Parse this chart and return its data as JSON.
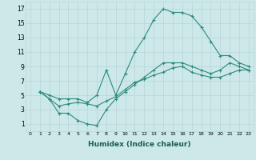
{
  "xlabel": "Humidex (Indice chaleur)",
  "line_color": "#2e8b7a",
  "bg_color": "#cce8e8",
  "grid_color": "#b8d4d4",
  "xlim": [
    -0.5,
    23.5
  ],
  "ylim": [
    0,
    18
  ],
  "xticks": [
    0,
    1,
    2,
    3,
    4,
    5,
    6,
    7,
    8,
    9,
    10,
    11,
    12,
    13,
    14,
    15,
    16,
    17,
    18,
    19,
    20,
    21,
    22,
    23
  ],
  "yticks": [
    1,
    3,
    5,
    7,
    9,
    11,
    13,
    15,
    17
  ],
  "line1_x": [
    1,
    2,
    3,
    4,
    5,
    6,
    7,
    8,
    9,
    10,
    11,
    12,
    13,
    14,
    15,
    16,
    17,
    18,
    19,
    20,
    21,
    22,
    23
  ],
  "line1_y": [
    5.5,
    5.0,
    4.5,
    4.5,
    4.5,
    4.0,
    5.0,
    8.5,
    5.0,
    8.0,
    11.0,
    13.0,
    15.5,
    17.0,
    16.5,
    16.5,
    16.0,
    14.5,
    12.5,
    10.5,
    10.5,
    9.5,
    9.0
  ],
  "line2_x": [
    1,
    2,
    3,
    4,
    5,
    6,
    7,
    8,
    9,
    10,
    11,
    12,
    13,
    14,
    15,
    16,
    17,
    18,
    19,
    20,
    21,
    22,
    23
  ],
  "line2_y": [
    5.5,
    4.5,
    2.5,
    2.5,
    1.5,
    1.0,
    0.8,
    3.0,
    4.5,
    5.5,
    6.5,
    7.5,
    8.5,
    9.5,
    9.5,
    9.5,
    9.0,
    8.5,
    8.0,
    8.5,
    9.5,
    9.0,
    8.5
  ],
  "line3_x": [
    1,
    2,
    3,
    4,
    5,
    6,
    7,
    8,
    9,
    10,
    11,
    12,
    13,
    14,
    15,
    16,
    17,
    18,
    19,
    20,
    21,
    22,
    23
  ],
  "line3_y": [
    5.5,
    4.5,
    3.5,
    3.8,
    4.0,
    3.8,
    3.5,
    4.2,
    4.8,
    5.8,
    6.8,
    7.2,
    7.8,
    8.2,
    8.8,
    9.0,
    8.2,
    7.8,
    7.5,
    7.5,
    8.0,
    8.5,
    8.5
  ]
}
